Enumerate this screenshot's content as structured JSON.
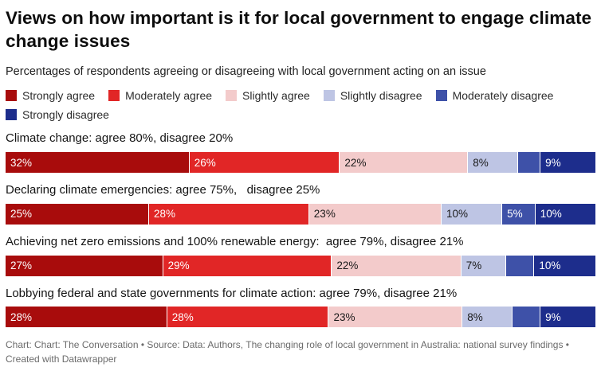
{
  "header": {
    "title": "Views on how important is it for local government to engage climate change issues",
    "subtitle": "Percentages of respondents agreeing or disagreeing with local government acting on an issue"
  },
  "legend": [
    {
      "label": "Strongly agree",
      "color": "#a80c0c",
      "text_color": "#ffffff"
    },
    {
      "label": "Moderately agree",
      "color": "#e12626",
      "text_color": "#ffffff"
    },
    {
      "label": "Slightly agree",
      "color": "#f3cbcb",
      "text_color": "#1a1a1a"
    },
    {
      "label": "Slightly disagree",
      "color": "#bec5e4",
      "text_color": "#1a1a1a"
    },
    {
      "label": "Moderately disagree",
      "color": "#3e51a8",
      "text_color": "#ffffff"
    },
    {
      "label": "Strongly disagree",
      "color": "#1d2d8c",
      "text_color": "#ffffff"
    }
  ],
  "chart_data": {
    "type": "bar",
    "variant": "horizontal-stacked",
    "unit": "%",
    "axis_range": [
      0,
      100
    ],
    "grid": false,
    "legend_position": "top",
    "categories": [
      "Strongly agree",
      "Moderately agree",
      "Slightly agree",
      "Slightly disagree",
      "Moderately disagree",
      "Strongly disagree"
    ],
    "rows": [
      {
        "label": "Climate change: agree 80%, disagree 20%",
        "values": [
          32,
          26,
          22,
          8,
          3,
          9
        ],
        "segment_labels": [
          "32%",
          "26%",
          "22%",
          "8%",
          "",
          "9%"
        ]
      },
      {
        "label": "Declaring climate emergencies: agree 75%,   disagree 25%",
        "values": [
          25,
          28,
          23,
          10,
          5,
          10
        ],
        "segment_labels": [
          "25%",
          "28%",
          "23%",
          "10%",
          "5%",
          "10%"
        ]
      },
      {
        "label": "Achieving net zero emissions and 100% renewable energy:  agree 79%, disagree 21%",
        "values": [
          27,
          29,
          22,
          7,
          4,
          10
        ],
        "segment_labels": [
          "27%",
          "29%",
          "22%",
          "7%",
          "",
          "10%"
        ]
      },
      {
        "label": "Lobbying federal and state governments for climate action: agree 79%, disagree 21%",
        "values": [
          28,
          28,
          23,
          8,
          4,
          9
        ],
        "segment_labels": [
          "28%",
          "28%",
          "23%",
          "8%",
          "",
          "9%"
        ]
      }
    ]
  },
  "footer": {
    "text": "Chart: Chart: The Conversation • Source: Data: Authors, The changing role of local government in Australia: national survey findings • Created with Datawrapper"
  }
}
